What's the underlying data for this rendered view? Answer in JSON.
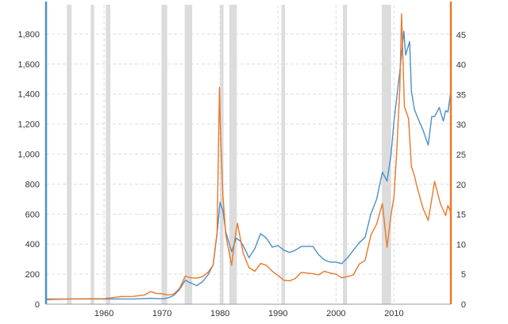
{
  "chart_data": {
    "type": "line",
    "xlim": [
      1950,
      2019.8
    ],
    "x_ticks": [
      1960,
      1970,
      1980,
      1990,
      2000,
      2010
    ],
    "x_tick_labels": [
      "1960",
      "1970",
      "1980",
      "1990",
      "2000",
      "2010"
    ],
    "left_axis": {
      "ylim": [
        0,
        1995
      ],
      "ticks": [
        0,
        200,
        400,
        600,
        800,
        1000,
        1200,
        1400,
        1600,
        1800
      ],
      "tick_labels": [
        "0",
        "200",
        "400",
        "600",
        "800",
        "1,000",
        "1,200",
        "1,400",
        "1,600",
        "1,800"
      ],
      "color": "#4a90c8"
    },
    "right_axis": {
      "ylim": [
        0,
        50
      ],
      "ticks": [
        0,
        5,
        10,
        15,
        20,
        25,
        30,
        35,
        40,
        45
      ],
      "tick_labels": [
        "0",
        "5",
        "10",
        "15",
        "20",
        "25",
        "30",
        "35",
        "40",
        "45"
      ],
      "color": "#e8782c"
    },
    "grid": true,
    "recession_bands": [
      [
        1953.6,
        1954.4
      ],
      [
        1957.7,
        1958.3
      ],
      [
        1960.3,
        1961.1
      ],
      [
        1969.9,
        1970.9
      ],
      [
        1973.9,
        1975.2
      ],
      [
        1980.0,
        1980.6
      ],
      [
        1981.6,
        1982.9
      ],
      [
        1990.6,
        1991.2
      ],
      [
        2001.2,
        2001.9
      ],
      [
        2007.9,
        2009.5
      ]
    ],
    "series": [
      {
        "axis": "left",
        "color": "#4a90c8",
        "x": [
          1950,
          1955,
          1960,
          1965,
          1968,
          1970,
          1971,
          1972,
          1973,
          1974,
          1975,
          1976,
          1977,
          1978,
          1978.8,
          1979.5,
          1980.0,
          1980.5,
          1981,
          1982,
          1982.8,
          1983.5,
          1984,
          1985,
          1986,
          1987,
          1988,
          1989,
          1990,
          1991,
          1992,
          1993,
          1994,
          1995,
          1996,
          1997,
          1998,
          1999,
          2000,
          2001,
          2002,
          2003,
          2004,
          2005,
          2006,
          2007,
          2008,
          2008.8,
          2009.5,
          2010,
          2011,
          2011.7,
          2012,
          2012.7,
          2013,
          2013.5,
          2014,
          2015,
          2015.9,
          2016.5,
          2017,
          2017.8,
          2018.5,
          2018.9,
          2019.3,
          2019.8
        ],
        "y": [
          35,
          35,
          35,
          35,
          39,
          36,
          41,
          58,
          97,
          160,
          140,
          124,
          150,
          200,
          260,
          470,
          680,
          620,
          480,
          350,
          440,
          420,
          390,
          310,
          370,
          470,
          440,
          380,
          390,
          360,
          345,
          360,
          385,
          385,
          385,
          330,
          295,
          280,
          280,
          270,
          310,
          360,
          410,
          445,
          600,
          700,
          880,
          820,
          1000,
          1220,
          1550,
          1820,
          1660,
          1750,
          1420,
          1300,
          1250,
          1160,
          1060,
          1250,
          1250,
          1310,
          1220,
          1290,
          1280,
          1420
        ]
      },
      {
        "axis": "right",
        "color": "#e8782c",
        "x": [
          1950,
          1955,
          1960,
          1963,
          1965,
          1967,
          1968,
          1969,
          1970,
          1971,
          1972,
          1973,
          1974,
          1975,
          1976,
          1977,
          1978,
          1978.8,
          1979.5,
          1979.9,
          1980.1,
          1980.5,
          1981,
          1982,
          1982.5,
          1983,
          1984,
          1985,
          1986,
          1987,
          1988,
          1989,
          1990,
          1991,
          1992,
          1993,
          1994,
          1995,
          1996,
          1997,
          1998,
          1999,
          2000,
          2001,
          2002,
          2003,
          2004,
          2005,
          2006,
          2007,
          2008,
          2008.8,
          2009.5,
          2010,
          2010.5,
          2011,
          2011.3,
          2011.8,
          2012.5,
          2013,
          2013.5,
          2014,
          2015,
          2015.9,
          2016.5,
          2017,
          2018,
          2018.9,
          2019.3,
          2019.8
        ],
        "y": [
          0.75,
          0.9,
          0.91,
          1.28,
          1.29,
          1.55,
          2.1,
          1.8,
          1.75,
          1.55,
          1.68,
          2.6,
          4.7,
          4.4,
          4.35,
          4.6,
          5.4,
          6.5,
          12.0,
          36.2,
          28,
          18,
          11.5,
          6.5,
          10.5,
          13.5,
          8.5,
          6.1,
          5.5,
          6.8,
          6.5,
          5.5,
          4.8,
          4.0,
          3.9,
          4.3,
          5.3,
          5.2,
          5.1,
          4.9,
          5.5,
          5.2,
          5.0,
          4.4,
          4.6,
          4.9,
          6.7,
          7.3,
          11.5,
          13.4,
          16.8,
          9.5,
          15.0,
          18.0,
          26.0,
          36.0,
          48.5,
          33.0,
          31.0,
          23.0,
          21.5,
          19.5,
          16.0,
          14.0,
          17.5,
          20.5,
          16.8,
          14.8,
          16.5,
          15.3
        ]
      }
    ]
  }
}
